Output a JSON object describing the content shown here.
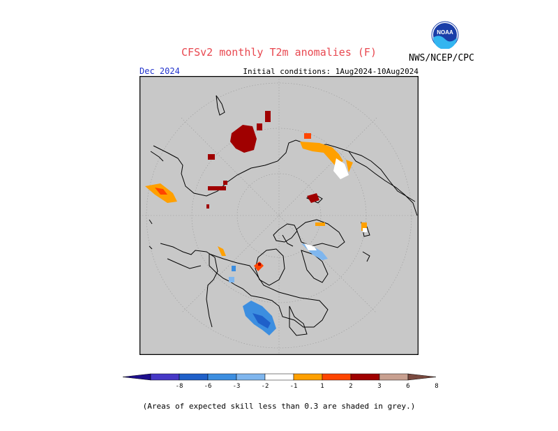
{
  "title": "CFSv2 monthly T2m anomalies (F)",
  "organization": "NWS/NCEP/CPC",
  "logo_text": "NOAA",
  "target_month": "Dec 2024",
  "initial_conditions": "Initial conditions: 1Aug2024-10Aug2024",
  "colorbar": {
    "labels": [
      "-8",
      "-6",
      "-3",
      "-2",
      "-1",
      "1",
      "2",
      "3",
      "6",
      "8"
    ],
    "colors": [
      "#1e0f8c",
      "#4638c6",
      "#1f60c9",
      "#3c8ee0",
      "#7fb6ee",
      "#ffffff",
      "#ffa000",
      "#ff4500",
      "#a00000",
      "#c8a090",
      "#7a4a40"
    ]
  },
  "map": {
    "background": "#c8c8c8",
    "projection": "north polar stereographic"
  },
  "footnote": "(Areas of expected skill less than 0.3 are shaded in grey.)"
}
